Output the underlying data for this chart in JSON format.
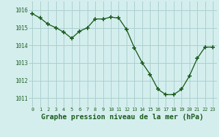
{
  "x": [
    0,
    1,
    2,
    3,
    4,
    5,
    6,
    7,
    8,
    9,
    10,
    11,
    12,
    13,
    14,
    15,
    16,
    17,
    18,
    19,
    20,
    21,
    22,
    23
  ],
  "y": [
    1015.8,
    1015.55,
    1015.2,
    1015.0,
    1014.75,
    1014.4,
    1014.8,
    1015.0,
    1015.5,
    1015.5,
    1015.6,
    1015.55,
    1014.9,
    1013.85,
    1013.0,
    1012.35,
    1011.5,
    1011.2,
    1011.2,
    1011.5,
    1012.25,
    1013.25,
    1013.9,
    1013.9
  ],
  "line_color": "#1a5c1a",
  "marker_color": "#1a5c1a",
  "bg_color": "#d4eeee",
  "grid_color": "#aacece",
  "xlabel": "Graphe pression niveau de la mer (hPa)",
  "xlabel_fontsize": 7.5,
  "xtick_labels": [
    "0",
    "1",
    "2",
    "3",
    "4",
    "5",
    "6",
    "7",
    "8",
    "9",
    "10",
    "11",
    "12",
    "13",
    "14",
    "15",
    "16",
    "17",
    "18",
    "19",
    "20",
    "21",
    "22",
    "23"
  ],
  "yticks": [
    1011,
    1012,
    1013,
    1014,
    1015,
    1016
  ],
  "ylim": [
    1010.5,
    1016.5
  ],
  "xlim": [
    -0.5,
    23.5
  ]
}
